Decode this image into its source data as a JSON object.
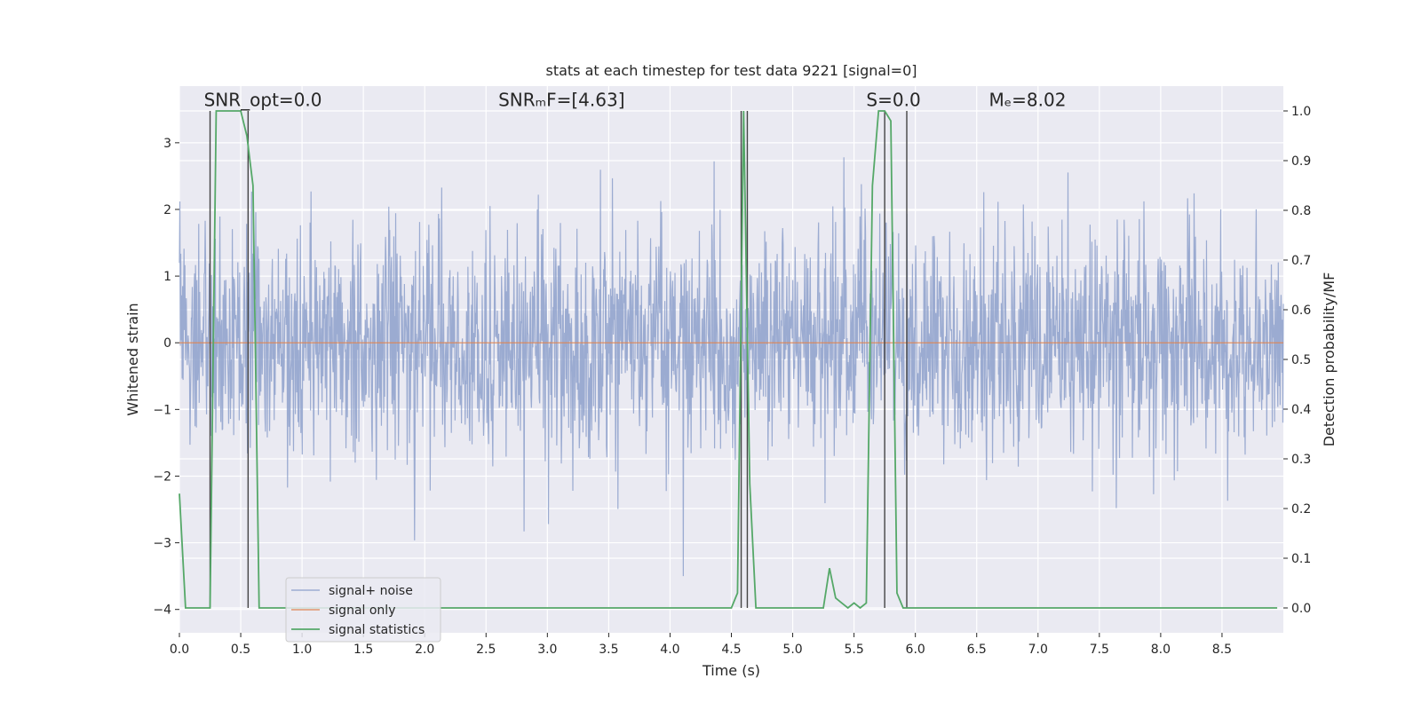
{
  "chart_data": {
    "type": "line",
    "title": "stats at each timestep for test data 9221 [signal=0]",
    "xlabel": "Time (s)",
    "ylabel": "Whitened strain",
    "ylabel_right": "Detection probability/MF",
    "xlim": [
      0.0,
      9.0
    ],
    "ylim": [
      -4.35,
      3.85
    ],
    "ylim_right": [
      -0.05,
      1.05
    ],
    "x_ticks": [
      0.0,
      0.5,
      1.0,
      1.5,
      2.0,
      2.5,
      3.0,
      3.5,
      4.0,
      4.5,
      5.0,
      5.5,
      6.0,
      6.5,
      7.0,
      7.5,
      8.0,
      8.5
    ],
    "x_tick_labels": [
      "0.0",
      "0.5",
      "1.0",
      "1.5",
      "2.0",
      "2.5",
      "3.0",
      "3.5",
      "4.0",
      "4.5",
      "5.0",
      "5.5",
      "6.0",
      "6.5",
      "7.0",
      "7.5",
      "8.0",
      "8.5"
    ],
    "y_ticks": [
      -4,
      -3,
      -2,
      -1,
      0,
      1,
      2,
      3
    ],
    "y_tick_labels": [
      "−4",
      "−3",
      "−2",
      "−1",
      "0",
      "1",
      "2",
      "3"
    ],
    "y_right_ticks": [
      0.0,
      0.1,
      0.2,
      0.3,
      0.4,
      0.5,
      0.6,
      0.7,
      0.8,
      0.9,
      1.0
    ],
    "y_right_tick_labels": [
      "0.0",
      "0.1",
      "0.2",
      "0.3",
      "0.4",
      "0.5",
      "0.6",
      "0.7",
      "0.8",
      "0.9",
      "1.0"
    ],
    "grid": true,
    "legend_placement": "lower-left",
    "annotations": [
      {
        "text": "SNR_opt=0.0",
        "x": 0.2,
        "y": 3.55
      },
      {
        "text": "SNRₘF=[4.63]",
        "x": 2.6,
        "y": 3.55
      },
      {
        "text": "S=0.0",
        "x": 5.6,
        "y": 3.55
      },
      {
        "text": "Mₑ=8.02",
        "x": 6.6,
        "y": 3.55
      }
    ],
    "vertical_lines": [
      0.25,
      0.56,
      4.58,
      4.63,
      5.75,
      5.93
    ],
    "series": [
      {
        "name": "signal+ noise",
        "color": "#8da0cb",
        "kind": "noise",
        "envelope_core": 1.2,
        "envelope_peak": 3.5,
        "trough_min": -3.6
      },
      {
        "name": "signal only",
        "color": "#dd8452",
        "x": [
          0.0,
          9.0
        ],
        "y": [
          0.0,
          0.0
        ]
      },
      {
        "name": "signal statistics",
        "color": "#55a868",
        "axis": "right",
        "x": [
          0.0,
          0.05,
          0.1,
          0.15,
          0.2,
          0.25,
          0.3,
          0.35,
          0.4,
          0.45,
          0.5,
          0.55,
          0.6,
          0.65,
          0.7,
          0.75,
          4.45,
          4.5,
          4.55,
          4.6,
          4.65,
          4.7,
          4.75,
          5.2,
          5.25,
          5.3,
          5.35,
          5.4,
          5.45,
          5.5,
          5.55,
          5.6,
          5.65,
          5.7,
          5.75,
          5.8,
          5.85,
          5.9,
          5.95,
          6.0,
          6.05,
          6.1,
          8.95
        ],
        "y": [
          0.23,
          0.0,
          0.0,
          0.0,
          0.0,
          0.0,
          1.0,
          1.0,
          1.0,
          1.0,
          1.0,
          0.95,
          0.85,
          0.0,
          0.0,
          0.0,
          0.0,
          0.0,
          0.03,
          1.0,
          0.25,
          0.0,
          0.0,
          0.0,
          0.0,
          0.08,
          0.02,
          0.01,
          0.0,
          0.01,
          0.0,
          0.01,
          0.85,
          1.0,
          1.0,
          0.98,
          0.03,
          0.0,
          0.0,
          0.0,
          0.0,
          0.0,
          0.0
        ]
      }
    ]
  }
}
